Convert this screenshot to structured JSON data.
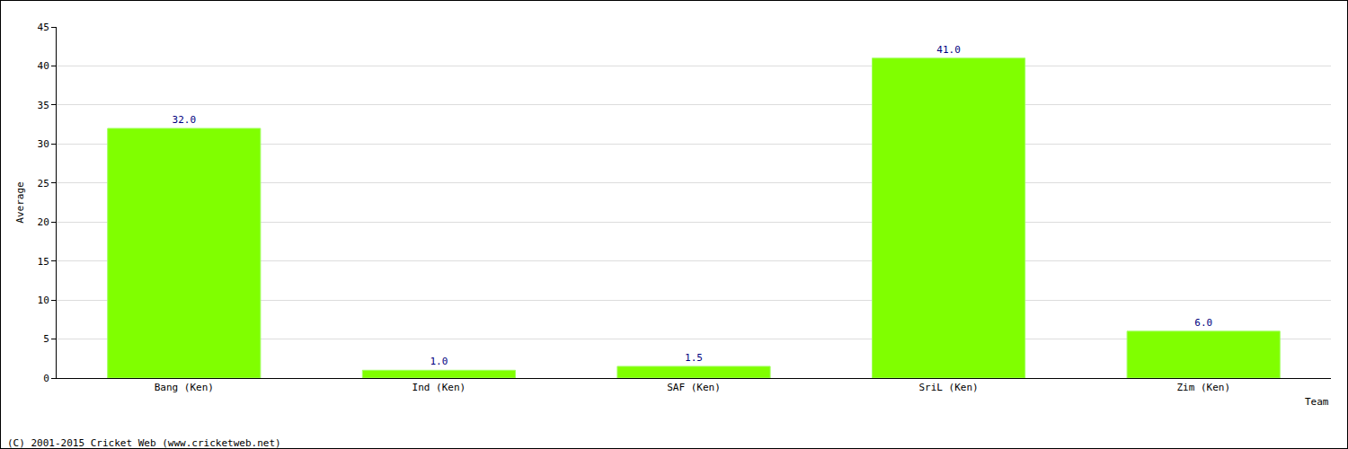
{
  "chart_data": {
    "type": "bar",
    "categories": [
      "Bang (Ken)",
      "Ind (Ken)",
      "SAF (Ken)",
      "SriL (Ken)",
      "Zim (Ken)"
    ],
    "values": [
      32,
      1,
      1.5,
      41,
      6
    ],
    "value_labels": [
      "32.0",
      "1.0",
      "1.5",
      "41.0",
      "6.0"
    ],
    "data_labels": true,
    "color": "#80ff00",
    "x_label": "Team",
    "y_label": "Average",
    "ylim": [
      0,
      45
    ],
    "yticks": [
      0,
      5,
      10,
      15,
      20,
      25,
      30,
      35,
      40,
      45
    ],
    "grid": true,
    "annotations": [
      "(C) 2001-2015 Cricket Web (www.cricketweb.net)"
    ]
  }
}
